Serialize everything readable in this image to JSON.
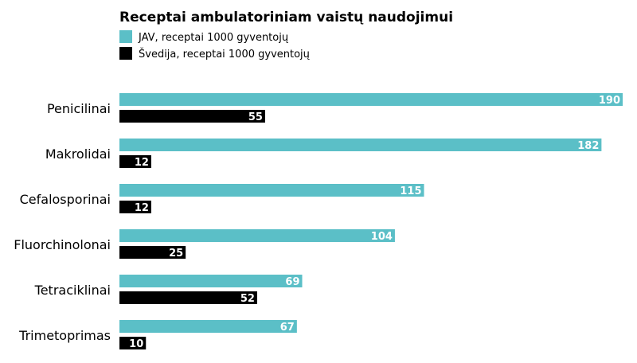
{
  "chart_data": {
    "type": "bar",
    "orientation": "horizontal",
    "title": "Receptai ambulatoriniam vaistų naudojimui",
    "categories": [
      "Penicilinai",
      "Makrolidai",
      "Cefalosporinai",
      "Fluorchinolonai",
      "Tetraciklinai",
      "Trimetoprimas"
    ],
    "series": [
      {
        "name": "JAV, receptai 1000 gyventojų",
        "color": "#5bbfc7",
        "values": [
          190,
          182,
          115,
          104,
          69,
          67
        ]
      },
      {
        "name": "Švedija, receptai 1000 gyventojų",
        "color": "#000000",
        "values": [
          55,
          12,
          12,
          25,
          52,
          10
        ]
      }
    ],
    "xlim": [
      0,
      190
    ],
    "grid": false,
    "legend": "top-left"
  }
}
